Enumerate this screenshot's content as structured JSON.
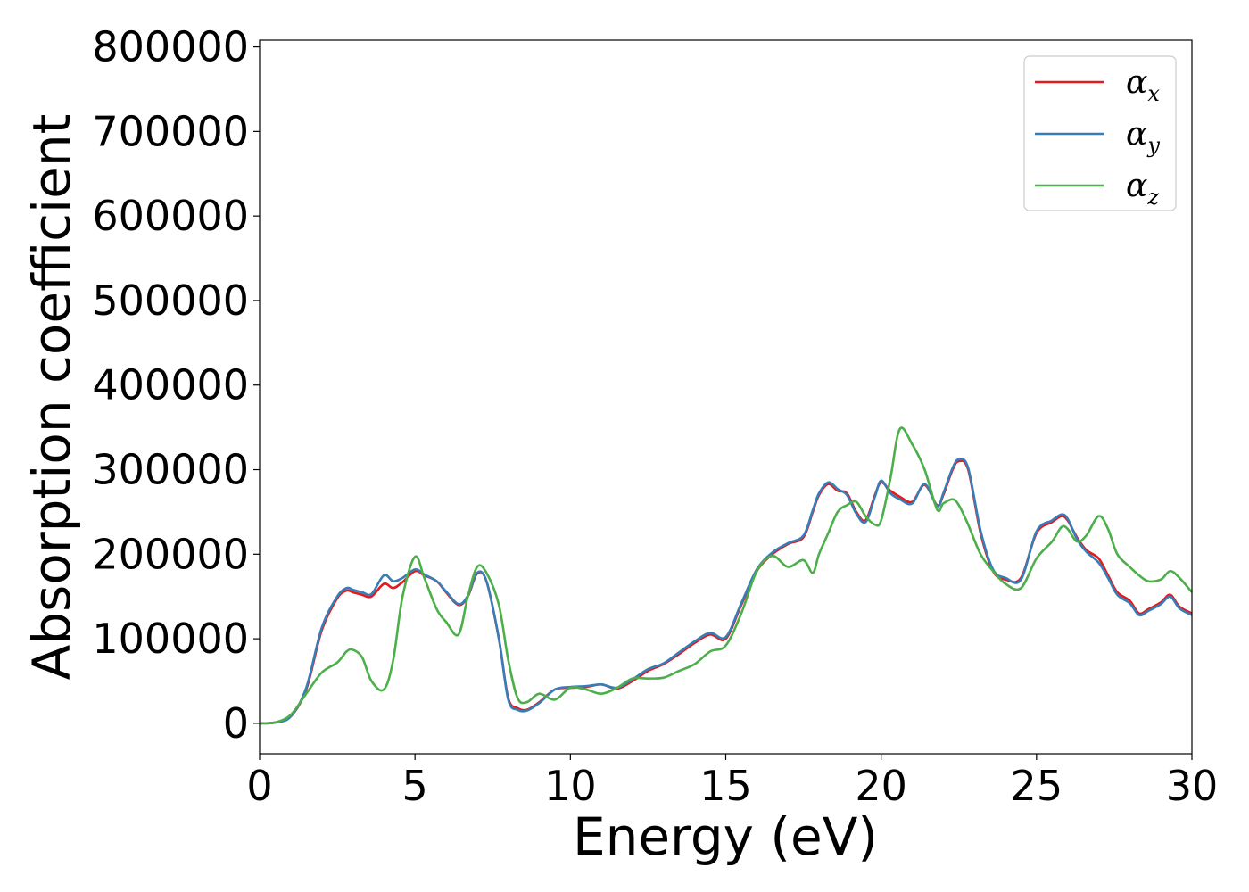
{
  "chart_data": {
    "type": "line",
    "xlabel": "Energy (eV)",
    "ylabel": "Absorption coefficient",
    "xlim": [
      0,
      30
    ],
    "ylim": [
      -36000,
      808000
    ],
    "xticks": [
      0,
      5,
      10,
      15,
      20,
      25,
      30
    ],
    "xtick_labels": [
      "0",
      "5",
      "10",
      "15",
      "20",
      "25",
      "30"
    ],
    "yticks": [
      0,
      100000,
      200000,
      300000,
      400000,
      500000,
      600000,
      700000,
      800000
    ],
    "ytick_labels": [
      "0",
      "100000",
      "200000",
      "300000",
      "400000",
      "500000",
      "600000",
      "700000",
      "800000"
    ],
    "grid": false,
    "legend_position": "top-right",
    "series": [
      {
        "name": "αx",
        "name_base": "α",
        "name_sub": "x",
        "color": "#e41a1c",
        "x": [
          0,
          0.5,
          1,
          1.5,
          2,
          2.5,
          2.8,
          3,
          3.3,
          3.6,
          4,
          4.3,
          4.6,
          5,
          5.3,
          5.7,
          6,
          6.4,
          6.7,
          7,
          7.3,
          7.7,
          8,
          8.3,
          8.6,
          9,
          9.5,
          10,
          10.5,
          11,
          11.5,
          12,
          12.5,
          13,
          13.5,
          14,
          14.5,
          15,
          15.5,
          16,
          16.5,
          17,
          17.5,
          17.8,
          18,
          18.3,
          18.6,
          18.9,
          19.2,
          19.5,
          19.8,
          20,
          20.3,
          20.6,
          21,
          21.4,
          21.8,
          22,
          22.3,
          22.5,
          22.8,
          23.2,
          23.6,
          24,
          24.5,
          25,
          25.5,
          25.8,
          26,
          26.3,
          26.6,
          27,
          27.3,
          27.6,
          28,
          28.3,
          28.6,
          29,
          29.3,
          29.6,
          30
        ],
        "y": [
          0,
          1000,
          8000,
          40000,
          110000,
          148000,
          157000,
          155000,
          152000,
          150000,
          165000,
          160000,
          167000,
          180000,
          175000,
          168000,
          155000,
          140000,
          150000,
          177000,
          168000,
          100000,
          30000,
          18000,
          16000,
          25000,
          40000,
          42000,
          43000,
          46000,
          41000,
          50000,
          62000,
          70000,
          82000,
          95000,
          105000,
          100000,
          140000,
          180000,
          200000,
          212000,
          220000,
          250000,
          270000,
          283000,
          275000,
          272000,
          250000,
          240000,
          270000,
          285000,
          275000,
          268000,
          262000,
          282000,
          258000,
          270000,
          300000,
          310000,
          300000,
          225000,
          180000,
          170000,
          172000,
          225000,
          238000,
          245000,
          240000,
          220000,
          205000,
          195000,
          175000,
          155000,
          145000,
          130000,
          135000,
          143000,
          152000,
          138000,
          130000
        ]
      },
      {
        "name": "αy",
        "name_base": "α",
        "name_sub": "y",
        "color": "#377eb8",
        "x": [
          0,
          0.5,
          1,
          1.5,
          2,
          2.5,
          2.8,
          3,
          3.3,
          3.6,
          4,
          4.3,
          4.6,
          5,
          5.3,
          5.7,
          6,
          6.4,
          6.7,
          7,
          7.3,
          7.7,
          8,
          8.3,
          8.6,
          9,
          9.5,
          10,
          10.5,
          11,
          11.5,
          12,
          12.5,
          13,
          13.5,
          14,
          14.5,
          15,
          15.5,
          16,
          16.5,
          17,
          17.5,
          17.8,
          18,
          18.3,
          18.6,
          18.9,
          19.2,
          19.5,
          19.8,
          20,
          20.3,
          20.6,
          21,
          21.4,
          21.8,
          22,
          22.3,
          22.5,
          22.8,
          23.2,
          23.6,
          24,
          24.5,
          25,
          25.5,
          25.8,
          26,
          26.3,
          26.6,
          27,
          27.3,
          27.6,
          28,
          28.3,
          28.6,
          29,
          29.3,
          29.6,
          30
        ],
        "y": [
          0,
          1000,
          8000,
          42000,
          113000,
          150000,
          160000,
          158000,
          155000,
          153000,
          175000,
          168000,
          172000,
          182000,
          176000,
          168000,
          156000,
          141000,
          151000,
          178000,
          168000,
          100000,
          28000,
          16000,
          15000,
          24000,
          40000,
          43000,
          44000,
          46000,
          42000,
          52000,
          64000,
          71000,
          84000,
          97000,
          107000,
          102000,
          142000,
          182000,
          202000,
          213000,
          222000,
          252000,
          272000,
          285000,
          277000,
          270000,
          248000,
          238000,
          268000,
          287000,
          272000,
          265000,
          260000,
          283000,
          257000,
          272000,
          302000,
          312000,
          302000,
          228000,
          182000,
          172000,
          170000,
          227000,
          240000,
          247000,
          242000,
          218000,
          203000,
          190000,
          172000,
          152000,
          142000,
          128000,
          133000,
          141000,
          150000,
          136000,
          128000
        ]
      },
      {
        "name": "αz",
        "name_base": "α",
        "name_sub": "z",
        "color": "#4daf4a",
        "x": [
          0,
          0.5,
          1,
          1.5,
          2,
          2.5,
          2.8,
          3,
          3.3,
          3.6,
          4,
          4.3,
          4.6,
          5,
          5.3,
          5.7,
          6,
          6.4,
          6.7,
          7,
          7.3,
          7.7,
          8,
          8.3,
          8.6,
          9,
          9.5,
          10,
          10.5,
          11,
          11.5,
          12,
          12.5,
          13,
          13.5,
          14,
          14.5,
          15,
          15.5,
          16,
          16.5,
          17,
          17.5,
          17.8,
          18,
          18.3,
          18.6,
          18.9,
          19.2,
          19.5,
          19.8,
          20,
          20.3,
          20.6,
          21,
          21.4,
          21.8,
          22,
          22.3,
          22.5,
          22.8,
          23.2,
          23.6,
          24,
          24.5,
          25,
          25.5,
          25.8,
          26,
          26.3,
          26.6,
          27,
          27.3,
          27.6,
          28,
          28.3,
          28.6,
          29,
          29.3,
          29.6,
          30
        ],
        "y": [
          0,
          1000,
          10000,
          35000,
          60000,
          72000,
          85000,
          87000,
          78000,
          50000,
          40000,
          75000,
          150000,
          197000,
          172000,
          135000,
          120000,
          105000,
          150000,
          185000,
          178000,
          140000,
          75000,
          30000,
          25000,
          35000,
          28000,
          42000,
          40000,
          35000,
          42000,
          53000,
          53000,
          54000,
          62000,
          70000,
          85000,
          92000,
          130000,
          180000,
          198000,
          185000,
          193000,
          178000,
          200000,
          225000,
          250000,
          258000,
          262000,
          245000,
          235000,
          240000,
          290000,
          348000,
          330000,
          300000,
          253000,
          260000,
          265000,
          258000,
          235000,
          200000,
          180000,
          165000,
          160000,
          195000,
          215000,
          232000,
          230000,
          215000,
          222000,
          245000,
          230000,
          200000,
          185000,
          175000,
          168000,
          170000,
          180000,
          172000,
          155000
        ]
      }
    ]
  }
}
